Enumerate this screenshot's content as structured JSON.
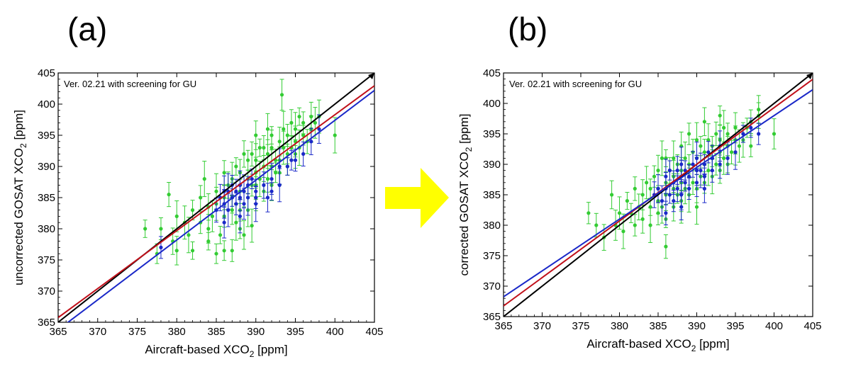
{
  "colors": {
    "black_line": "#000000",
    "red_line": "#c0101a",
    "blue_line": "#1a28c8",
    "green_points": "#33cc33",
    "blue_points": "#1a28c8",
    "arrow": "#ffff00"
  },
  "arrow_icon": "right-arrow-icon",
  "chart_data": [
    {
      "type": "scatter",
      "panel_label": "(a)",
      "annotation": "Ver. 02.21 with screening for GU",
      "xlabel": "Aircraft-based XCO",
      "xlabel_sub": "2",
      "xlabel_unit": " [ppm]",
      "ylabel": "uncorrected GOSAT XCO",
      "ylabel_sub": "2",
      "ylabel_unit": " [ppm]",
      "xlim": [
        365,
        405
      ],
      "ylim": [
        365,
        405
      ],
      "xticks": [
        "365",
        "370",
        "375",
        "380",
        "385",
        "390",
        "395",
        "400",
        "405"
      ],
      "yticks": [
        "365",
        "370",
        "375",
        "380",
        "385",
        "390",
        "395",
        "400",
        "405"
      ],
      "lines": [
        {
          "color": "black",
          "slope": 1.0,
          "intercept": 0
        },
        {
          "color": "red",
          "slope": 0.93,
          "intercept": 26.3
        },
        {
          "color": "blue",
          "slope": 0.96,
          "intercept": 13.4
        }
      ],
      "series": [
        {
          "color": "green",
          "points": [
            [
              376,
              380
            ],
            [
              377.5,
              376
            ],
            [
              378,
              380
            ],
            [
              379,
              385.5
            ],
            [
              379.5,
              378
            ],
            [
              380,
              376.5
            ],
            [
              380,
              382
            ],
            [
              381,
              381
            ],
            [
              381.5,
              379
            ],
            [
              382,
              376.5
            ],
            [
              382,
              383
            ],
            [
              383,
              381
            ],
            [
              383,
              385
            ],
            [
              384,
              383.5
            ],
            [
              384,
              380
            ],
            [
              384.5,
              382
            ],
            [
              385,
              384
            ],
            [
              385,
              386
            ],
            [
              385.5,
              379
            ],
            [
              386,
              376.5
            ],
            [
              386,
              382
            ],
            [
              386,
              385
            ],
            [
              386.5,
              387
            ],
            [
              387,
              383
            ],
            [
              387,
              385
            ],
            [
              387,
              388
            ],
            [
              387.5,
              381
            ],
            [
              387.5,
              390
            ],
            [
              388,
              380
            ],
            [
              388,
              383
            ],
            [
              388,
              386
            ],
            [
              388,
              389
            ],
            [
              388.5,
              379
            ],
            [
              388.5,
              386
            ],
            [
              389,
              383
            ],
            [
              389,
              385
            ],
            [
              389,
              388
            ],
            [
              389,
              391
            ],
            [
              389.5,
              387
            ],
            [
              389.5,
              392
            ],
            [
              390,
              385
            ],
            [
              390,
              387
            ],
            [
              390,
              389
            ],
            [
              390,
              391
            ],
            [
              390.5,
              388
            ],
            [
              390.5,
              393
            ],
            [
              391,
              386
            ],
            [
              391,
              390
            ],
            [
              391,
              393
            ],
            [
              391.5,
              388
            ],
            [
              391.5,
              392
            ],
            [
              392,
              387
            ],
            [
              392,
              390
            ],
            [
              392,
              393
            ],
            [
              392,
              395
            ],
            [
              392.5,
              389
            ],
            [
              392.5,
              391
            ],
            [
              393,
              389
            ],
            [
              393,
              391
            ],
            [
              393,
              394
            ],
            [
              393.3,
              401.5
            ],
            [
              393.5,
              393
            ],
            [
              393.5,
              396
            ],
            [
              394,
              390
            ],
            [
              394,
              392
            ],
            [
              394,
              395
            ],
            [
              394.5,
              393
            ],
            [
              394.5,
              397
            ],
            [
              395,
              392
            ],
            [
              395,
              394
            ],
            [
              395,
              396
            ],
            [
              395.5,
              393
            ],
            [
              395.5,
              398
            ],
            [
              396,
              395
            ],
            [
              396,
              397
            ],
            [
              396.5,
              394
            ],
            [
              397,
              396
            ],
            [
              397,
              398
            ],
            [
              397.5,
              397
            ],
            [
              398,
              398
            ],
            [
              400,
              395
            ],
            [
              384,
              378
            ],
            [
              385,
              376
            ],
            [
              387,
              376.5
            ],
            [
              386,
              389
            ],
            [
              388.5,
              392
            ],
            [
              390,
              395
            ],
            [
              391.5,
              396
            ],
            [
              389.5,
              380.5
            ],
            [
              383.5,
              388
            ]
          ]
        },
        {
          "color": "blue",
          "points": [
            [
              378,
              377
            ],
            [
              385,
              383
            ],
            [
              385.5,
              385
            ],
            [
              386,
              384
            ],
            [
              386,
              386
            ],
            [
              386.5,
              383
            ],
            [
              386.5,
              386
            ],
            [
              387,
              385
            ],
            [
              387,
              387
            ],
            [
              387.5,
              384
            ],
            [
              387.5,
              386
            ],
            [
              388,
              385
            ],
            [
              388,
              387
            ],
            [
              388.5,
              384
            ],
            [
              388.5,
              386
            ],
            [
              389,
              385
            ],
            [
              389,
              387
            ],
            [
              389.5,
              388
            ],
            [
              390,
              385
            ],
            [
              390,
              386
            ],
            [
              391,
              387
            ],
            [
              391.5,
              385
            ],
            [
              392,
              388
            ],
            [
              393,
              387
            ],
            [
              393,
              390
            ],
            [
              394,
              390
            ],
            [
              394.5,
              391
            ],
            [
              395,
              391
            ],
            [
              396,
              392
            ],
            [
              397,
              394
            ],
            [
              398,
              396
            ],
            [
              386,
              381
            ],
            [
              388,
              382
            ],
            [
              390,
              384
            ],
            [
              392,
              386
            ]
          ]
        }
      ]
    },
    {
      "type": "scatter",
      "panel_label": "(b)",
      "annotation": "Ver. 02.21 with screening for GU",
      "xlabel": "Aircraft-based XCO",
      "xlabel_sub": "2",
      "xlabel_unit": " [ppm]",
      "ylabel": "corrected GOSAT XCO",
      "ylabel_sub": "2",
      "ylabel_unit": " [ppm]",
      "xlim": [
        365,
        405
      ],
      "ylim": [
        365,
        405
      ],
      "xticks": [
        "365",
        "370",
        "375",
        "380",
        "385",
        "390",
        "395",
        "400",
        "405"
      ],
      "yticks": [
        "365",
        "370",
        "375",
        "380",
        "385",
        "390",
        "395",
        "400",
        "405"
      ],
      "lines": [
        {
          "color": "black",
          "slope": 1.0,
          "intercept": 0
        },
        {
          "color": "red",
          "slope": 0.93,
          "intercept": 27.3
        },
        {
          "color": "blue",
          "slope": 0.85,
          "intercept": 58.0
        }
      ],
      "series": [
        {
          "color": "green",
          "points": [
            [
              376,
              382
            ],
            [
              377,
              380
            ],
            [
              378,
              378
            ],
            [
              379,
              385
            ],
            [
              379.5,
              380
            ],
            [
              380,
              382
            ],
            [
              380.5,
              379
            ],
            [
              381,
              384
            ],
            [
              381.5,
              382
            ],
            [
              382,
              380
            ],
            [
              382,
              386
            ],
            [
              382.5,
              383
            ],
            [
              383,
              381
            ],
            [
              383,
              385
            ],
            [
              383.5,
              387
            ],
            [
              384,
              380
            ],
            [
              384,
              383
            ],
            [
              384,
              386
            ],
            [
              384.5,
              388
            ],
            [
              385,
              382
            ],
            [
              385,
              384
            ],
            [
              385,
              386
            ],
            [
              385,
              389
            ],
            [
              385.5,
              383
            ],
            [
              385.5,
              391
            ],
            [
              386,
              381
            ],
            [
              386,
              385
            ],
            [
              386,
              387
            ],
            [
              386,
              376.5
            ],
            [
              386.5,
              389
            ],
            [
              387,
              383
            ],
            [
              387,
              386
            ],
            [
              387,
              388
            ],
            [
              387,
              391
            ],
            [
              387.5,
              385
            ],
            [
              387.5,
              390
            ],
            [
              388,
              384
            ],
            [
              388,
              387
            ],
            [
              388,
              389
            ],
            [
              388,
              393
            ],
            [
              388.5,
              386
            ],
            [
              388.5,
              391
            ],
            [
              389,
              385
            ],
            [
              389,
              388
            ],
            [
              389,
              390
            ],
            [
              389,
              395
            ],
            [
              389.5,
              387
            ],
            [
              389.5,
              392
            ],
            [
              390,
              386
            ],
            [
              390,
              389
            ],
            [
              390,
              391
            ],
            [
              390,
              394
            ],
            [
              390.5,
              388
            ],
            [
              390.5,
              393
            ],
            [
              391,
              387
            ],
            [
              391,
              390
            ],
            [
              391,
              392
            ],
            [
              391,
              397
            ],
            [
              391.5,
              389
            ],
            [
              391.5,
              394
            ],
            [
              392,
              388
            ],
            [
              392,
              391
            ],
            [
              392,
              393
            ],
            [
              392.5,
              390
            ],
            [
              392.5,
              395
            ],
            [
              393,
              389
            ],
            [
              393,
              392
            ],
            [
              393,
              394
            ],
            [
              393.5,
              391
            ],
            [
              393.5,
              396
            ],
            [
              394,
              390
            ],
            [
              394,
              393
            ],
            [
              394,
              395
            ],
            [
              394.5,
              392
            ],
            [
              395,
              392
            ],
            [
              395,
              394
            ],
            [
              395,
              396
            ],
            [
              395.5,
              393
            ],
            [
              396,
              394
            ],
            [
              396,
              395
            ],
            [
              396.5,
              396
            ],
            [
              397,
              393
            ],
            [
              397,
              397
            ],
            [
              398,
              398
            ],
            [
              398,
              399
            ],
            [
              400,
              395
            ],
            [
              388,
              383
            ],
            [
              390,
              383
            ],
            [
              386,
              391
            ],
            [
              393,
              398
            ]
          ]
        },
        {
          "color": "blue",
          "points": [
            [
              384.5,
              385
            ],
            [
              385,
              386
            ],
            [
              385.5,
              384
            ],
            [
              386,
              386
            ],
            [
              386,
              388
            ],
            [
              386.5,
              385
            ],
            [
              386.5,
              389
            ],
            [
              387,
              384
            ],
            [
              387,
              387
            ],
            [
              387.5,
              386
            ],
            [
              387.5,
              389
            ],
            [
              388,
              385
            ],
            [
              388,
              388
            ],
            [
              388,
              390
            ],
            [
              388.5,
              387
            ],
            [
              388.5,
              389
            ],
            [
              389,
              386
            ],
            [
              389,
              388
            ],
            [
              389.5,
              390
            ],
            [
              390,
              387
            ],
            [
              390,
              389
            ],
            [
              390,
              391
            ],
            [
              390.5,
              389
            ],
            [
              391,
              388
            ],
            [
              391,
              390
            ],
            [
              391.5,
              392
            ],
            [
              392,
              389
            ],
            [
              392,
              391
            ],
            [
              393,
              390
            ],
            [
              393,
              393
            ],
            [
              394,
              391
            ],
            [
              395,
              392
            ],
            [
              396,
              395
            ],
            [
              397,
              396
            ],
            [
              398,
              395
            ],
            [
              386,
              382
            ],
            [
              388,
              383
            ],
            [
              391,
              386
            ]
          ]
        }
      ]
    }
  ]
}
